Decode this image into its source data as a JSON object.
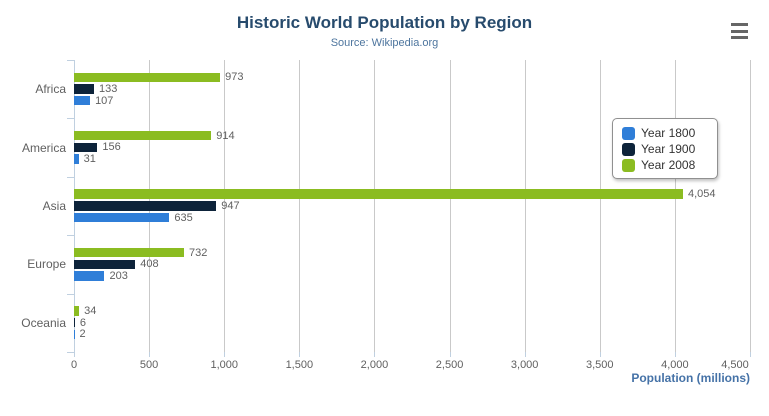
{
  "header": {
    "title": "Historic World Population by Region",
    "subtitle": "Source: Wikipedia.org"
  },
  "ui": {
    "menu_icon": "hamburger-menu-icon",
    "menu_color": "#666666"
  },
  "colors": {
    "title": "#274b6d",
    "subtitle": "#4d759e",
    "labels": "#606060",
    "gridline": "#c9c9c9",
    "axis_line": "#c0d0e0",
    "axis_title": "#4572a7",
    "legend_border": "#909090",
    "legend_text": "#333333"
  },
  "chart_data": {
    "type": "bar",
    "orientation": "horizontal",
    "title": "Historic World Population by Region",
    "subtitle": "Source: Wikipedia.org",
    "categories": [
      "Africa",
      "America",
      "Asia",
      "Europe",
      "Oceania"
    ],
    "series": [
      {
        "name": "Year 1800",
        "color": "#2f7ed8",
        "values": [
          107,
          31,
          635,
          203,
          2
        ]
      },
      {
        "name": "Year 1900",
        "color": "#0d233a",
        "values": [
          133,
          156,
          947,
          408,
          6
        ]
      },
      {
        "name": "Year 2008",
        "color": "#8bbc21",
        "values": [
          973,
          914,
          4054,
          732,
          34
        ]
      }
    ],
    "series_display_order_top_to_bottom": [
      "Year 2008",
      "Year 1900",
      "Year 1800"
    ],
    "data_labels": true,
    "xlabel": "Population (millions)",
    "ylabel": "",
    "xlim": [
      0,
      4500
    ],
    "x_ticks": [
      {
        "value": 0,
        "label": "0"
      },
      {
        "value": 500,
        "label": "500"
      },
      {
        "value": 1000,
        "label": "1,000"
      },
      {
        "value": 1500,
        "label": "1,500"
      },
      {
        "value": 2000,
        "label": "2,000"
      },
      {
        "value": 2500,
        "label": "2,500"
      },
      {
        "value": 3000,
        "label": "3,000"
      },
      {
        "value": 3500,
        "label": "3,500"
      },
      {
        "value": 4000,
        "label": "4,000"
      },
      {
        "value": 4500,
        "label": "4,500"
      }
    ],
    "grid": true,
    "legend_position": "right",
    "legend_items": [
      "Year 1800",
      "Year 1900",
      "Year 2008"
    ]
  }
}
